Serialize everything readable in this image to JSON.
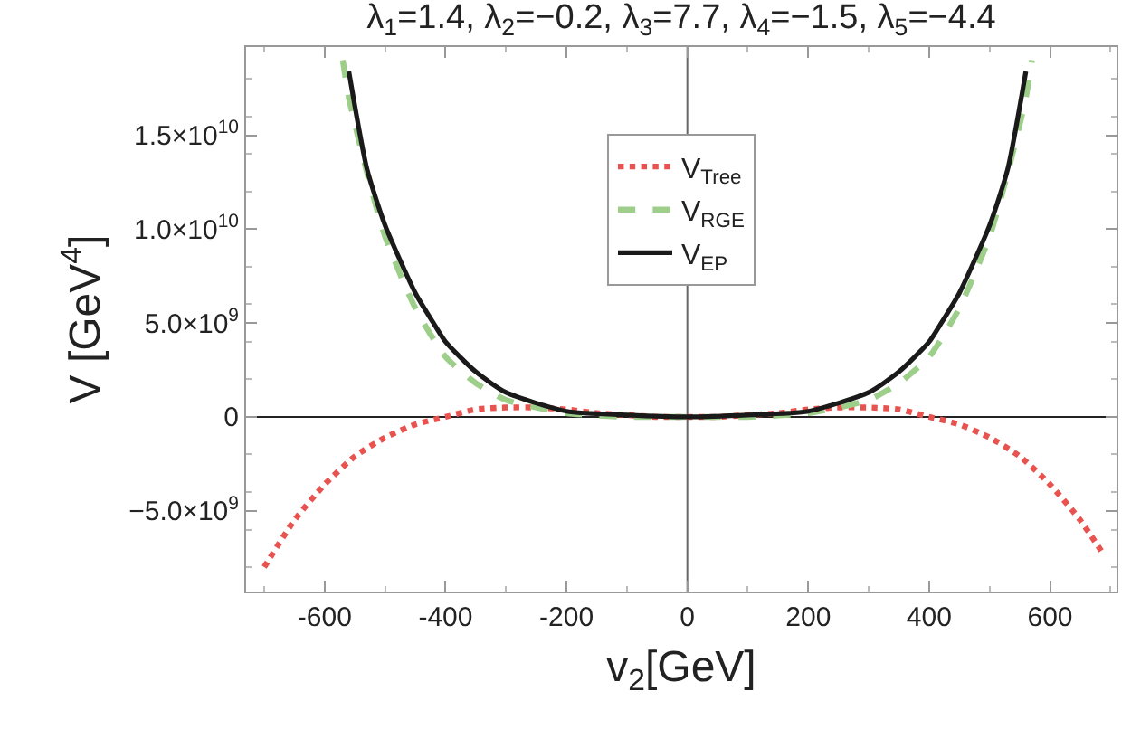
{
  "chart_data": {
    "type": "line",
    "title": "λ$_{1}$=1.4, λ$_{2}$=−0.2, λ$_{3}$=7.7, λ$_{4}$=−1.5, λ$_{5}$=−4.4",
    "xlabel": "v$_{2}$[GeV]",
    "ylabel": "V [GeV$^{4}$]",
    "xlim": [
      -730,
      710
    ],
    "ylim": [
      -9300000000,
      19700000000
    ],
    "xticks": [
      -600,
      -400,
      -200,
      0,
      200,
      400,
      600
    ],
    "yticks": [
      {
        "value": -5000000000,
        "label": "−5.0×10$^{9}$"
      },
      0,
      {
        "value": 5000000000,
        "label": "5.0×10$^{9}$"
      },
      {
        "value": 10000000000,
        "label": "1.0×10$^{10}$"
      },
      {
        "value": 15000000000,
        "label": "1.5×10$^{10}$"
      }
    ],
    "ref_lines": [
      {
        "axis": "x",
        "value": 0,
        "color": "#666666"
      },
      {
        "axis": "y",
        "value": 0,
        "color": "#222222"
      }
    ],
    "legend": "top",
    "marker": "none",
    "series": [
      {
        "name": "V$_{Tree}$",
        "color": "#e8534f",
        "line_style": "dotted",
        "x": [
          -700,
          -650,
          -600,
          -550,
          -500,
          -450,
          -400,
          -350,
          -300,
          -250,
          -200,
          -150,
          -100,
          -50,
          0,
          50,
          100,
          150,
          200,
          250,
          300,
          350,
          400,
          450,
          500,
          550,
          600,
          650,
          690
        ],
        "values": [
          -8000000000,
          -5500000000,
          -3600000000,
          -2100000000,
          -1100000000,
          -400000000,
          0,
          400000000,
          500000000,
          500000000,
          400000000,
          200000000,
          100000000,
          0,
          0,
          0,
          100000000,
          200000000,
          400000000,
          500000000,
          500000000,
          400000000,
          0,
          -400000000,
          -1100000000,
          -2100000000,
          -3600000000,
          -5500000000,
          -7400000000
        ]
      },
      {
        "name": "V$_{RGE}$",
        "color": "#9ecf8a",
        "line_style": "dashed",
        "x": [
          -570,
          -560,
          -530,
          -500,
          -450,
          -400,
          -350,
          -300,
          -200,
          -100,
          0,
          100,
          200,
          300,
          350,
          400,
          450,
          500,
          530,
          560,
          570
        ],
        "values": [
          19000000000,
          17000000000,
          13000000000,
          9600000000,
          5800000000,
          3200000000,
          1800000000,
          900000000,
          200000000,
          0,
          0,
          0,
          200000000,
          900000000,
          1800000000,
          3200000000,
          5800000000,
          9600000000,
          13000000000,
          17000000000,
          19000000000
        ]
      },
      {
        "name": "V$_{EP}$",
        "color": "#1a1a1a",
        "line_style": "solid",
        "x": [
          -560,
          -530,
          -500,
          -450,
          -420,
          -400,
          -350,
          -300,
          -200,
          -100,
          0,
          100,
          200,
          300,
          350,
          400,
          420,
          450,
          500,
          530,
          560
        ],
        "values": [
          18400000000,
          13200000000,
          10200000000,
          6600000000,
          5000000000,
          4000000000,
          2400000000,
          1300000000,
          300000000,
          100000000,
          0,
          100000000,
          300000000,
          1300000000,
          2400000000,
          4000000000,
          5000000000,
          6600000000,
          10200000000,
          13200000000,
          18400000000
        ]
      }
    ]
  }
}
